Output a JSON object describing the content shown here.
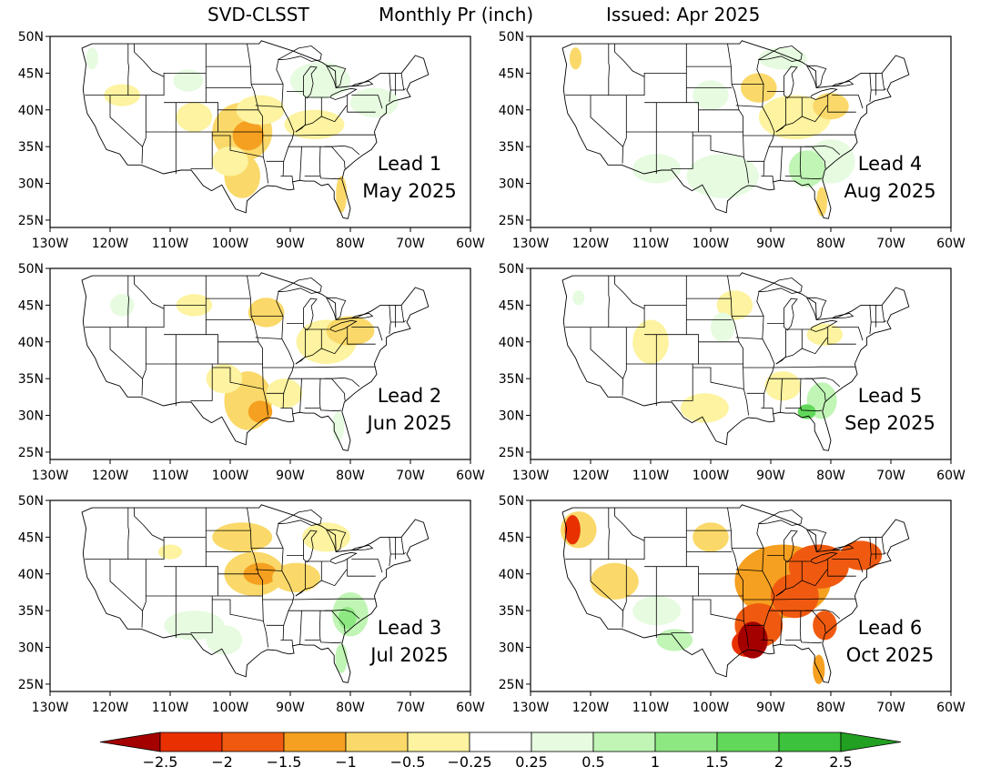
{
  "title": {
    "product": "SVD-CLSST",
    "variable": "Monthly Pr (inch)",
    "issued": "Issued: Apr 2025"
  },
  "lat_labels": [
    "50N",
    "45N",
    "40N",
    "35N",
    "30N",
    "25N"
  ],
  "lon_labels": [
    "130W",
    "120W",
    "110W",
    "100W",
    "90W",
    "80W",
    "70W",
    "60W"
  ],
  "panels": [
    {
      "lead": "Lead 1",
      "month": "May 2025"
    },
    {
      "lead": "Lead 4",
      "month": "Aug 2025"
    },
    {
      "lead": "Lead 2",
      "month": "Jun 2025"
    },
    {
      "lead": "Lead 5",
      "month": "Sep 2025"
    },
    {
      "lead": "Lead 3",
      "month": "Jul 2025"
    },
    {
      "lead": "Lead 6",
      "month": "Oct 2025"
    }
  ],
  "colorbar": {
    "labels": [
      "−2.5",
      "−2",
      "−1.5",
      "−1",
      "−0.5",
      "−0.25",
      "0.25",
      "0.5",
      "1",
      "1.5",
      "2",
      "2.5"
    ],
    "colors": [
      "#a50000",
      "#e83000",
      "#f05a10",
      "#f5a020",
      "#fad96a",
      "#fdf3a0",
      "#ffffff",
      "#e6fbe0",
      "#c0f5b5",
      "#8ee882",
      "#62d85a",
      "#3cc23c",
      "#22a022"
    ]
  }
}
